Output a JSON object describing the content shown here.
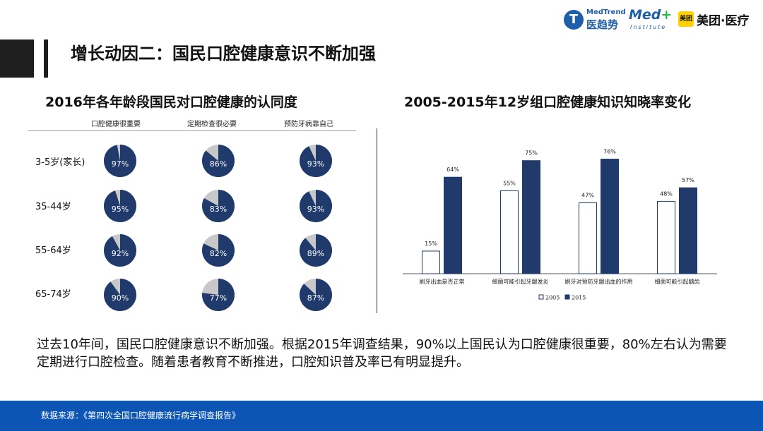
{
  "header": {
    "title": "增长动因二：国民口腔健康意识不断加强"
  },
  "logos": {
    "medtrend_en": "MedTrend",
    "medtrend_cn": "医趋势",
    "med_main": "Med",
    "med_plus": "+",
    "med_sub": "Institute",
    "meituan_box": "美团",
    "meituan_text": "美团·医疗"
  },
  "colors": {
    "navy": "#1f3a6b",
    "gray": "#c8c8c8",
    "footer_blue": "#0c55b5"
  },
  "chart_data": [
    {
      "type": "pie",
      "title": "2016年各年龄段国民对口腔健康的认同度",
      "columns": [
        "口腔健康很重要",
        "定期检查很必要",
        "预防牙病靠自己"
      ],
      "rows": [
        "3-5岁(家长)",
        "35-44岁",
        "55-64岁",
        "65-74岁"
      ],
      "values": [
        [
          97,
          86,
          93
        ],
        [
          95,
          83,
          93
        ],
        [
          92,
          82,
          89
        ],
        [
          90,
          77,
          87
        ]
      ],
      "value_suffix": "%"
    },
    {
      "type": "bar",
      "title": "2005-2015年12岁组口腔健康知识知晓率变化",
      "categories": [
        "刷牙出血是否正常",
        "细菌可能引起牙龈发炎",
        "刷牙对预防牙龈出血的作用",
        "细菌可能引起龋齿"
      ],
      "series": [
        {
          "name": "2005",
          "values": [
            15,
            55,
            47,
            48
          ],
          "color": "#ffffff"
        },
        {
          "name": "2015",
          "values": [
            64,
            75,
            76,
            57
          ],
          "color": "#1f3a6b"
        }
      ],
      "value_suffix": "%",
      "ylim": [
        0,
        80
      ],
      "legend": "bottom"
    }
  ],
  "body": {
    "text": "过去10年间，国民口腔健康意识不断加强。根据2015年调查结果，90%以上国民认为口腔健康很重要，80%左右认为需要定期进行口腔检查。随着患者教育不断推进，口腔知识普及率已有明显提升。"
  },
  "footer": {
    "source": "数据来源：《第四次全国口腔健康流行病学调查报告》"
  }
}
